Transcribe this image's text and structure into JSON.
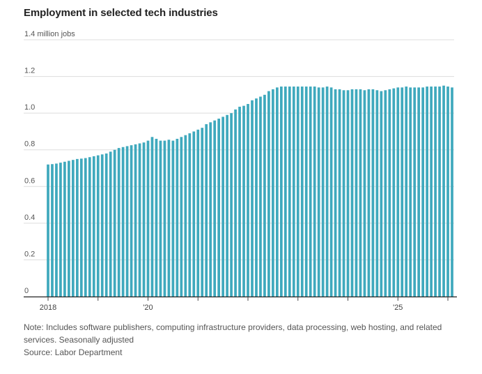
{
  "chart_data": {
    "type": "bar",
    "title": "Employment in selected tech industries",
    "ylabel": "",
    "unit_label": "1.4 million jobs",
    "ylim": [
      0,
      1.4
    ],
    "yticks": [
      "1.4",
      "1.2",
      "1.0",
      "0.8",
      "0.6",
      "0.4",
      "0.2",
      "0"
    ],
    "x_start": "2018-01",
    "x_tick_labels": [
      {
        "label": "2018",
        "at": "2018-01"
      },
      {
        "label": "'20",
        "at": "2020-01"
      },
      {
        "label": "'25",
        "at": "2025-01"
      }
    ],
    "color": "#3fa9bd",
    "values": [
      0.72,
      0.722,
      0.725,
      0.73,
      0.735,
      0.74,
      0.745,
      0.75,
      0.752,
      0.755,
      0.76,
      0.765,
      0.77,
      0.775,
      0.78,
      0.79,
      0.8,
      0.81,
      0.815,
      0.82,
      0.825,
      0.83,
      0.835,
      0.84,
      0.85,
      0.87,
      0.86,
      0.85,
      0.85,
      0.855,
      0.85,
      0.86,
      0.87,
      0.88,
      0.89,
      0.9,
      0.91,
      0.92,
      0.94,
      0.95,
      0.96,
      0.97,
      0.98,
      0.99,
      1.0,
      1.02,
      1.035,
      1.04,
      1.05,
      1.07,
      1.08,
      1.09,
      1.1,
      1.12,
      1.13,
      1.14,
      1.145,
      1.145,
      1.145,
      1.145,
      1.145,
      1.145,
      1.145,
      1.145,
      1.145,
      1.14,
      1.14,
      1.145,
      1.14,
      1.13,
      1.13,
      1.125,
      1.125,
      1.13,
      1.13,
      1.13,
      1.125,
      1.13,
      1.13,
      1.125,
      1.12,
      1.125,
      1.13,
      1.135,
      1.14,
      1.14,
      1.145,
      1.14,
      1.14,
      1.14,
      1.14,
      1.145,
      1.145,
      1.145,
      1.145,
      1.15,
      1.145,
      1.14
    ]
  },
  "footer": {
    "note": "Note: Includes software publishers, computing infrastructure providers, data processing, web hosting, and related services. Seasonally adjusted",
    "source": "Source: Labor Department"
  }
}
